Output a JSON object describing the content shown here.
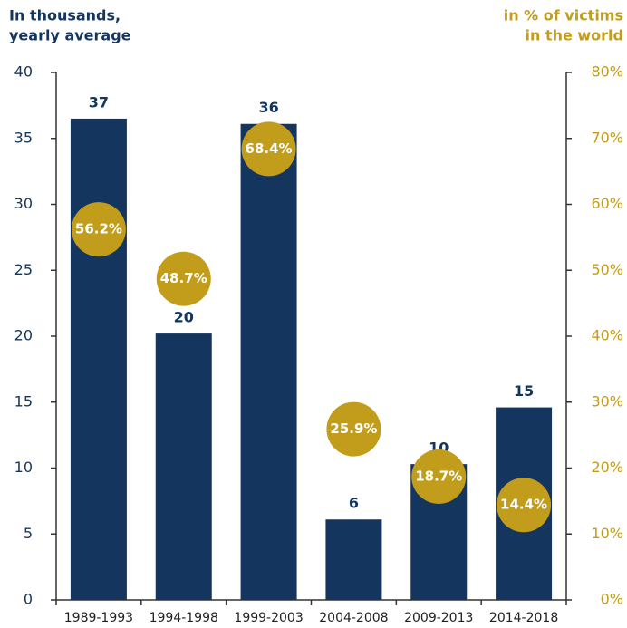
{
  "chart_data": {
    "type": "bar",
    "y_axis_title": [
      "In thousands,",
      "yearly average"
    ],
    "y2_axis_title": [
      "in % of victims",
      "in the world"
    ],
    "categories": [
      "1989-1993",
      "1994-1998",
      "1999-2003",
      "2004-2008",
      "2009-2013",
      "2014-2018"
    ],
    "series": [
      {
        "color": "#14365e",
        "values": [
          36.5,
          20.2,
          36.1,
          6.1,
          10.3,
          14.6
        ],
        "value_labels": [
          "37",
          "20",
          "36",
          "6",
          "10",
          "15"
        ]
      },
      {
        "color": "#c29d1b",
        "axis": "y2",
        "values": [
          56.2,
          48.7,
          68.4,
          25.9,
          18.7,
          14.4
        ],
        "value_labels": [
          "56.2%",
          "48.7%",
          "68.4%",
          "25.9%",
          "18.7%",
          "14.4%"
        ]
      }
    ],
    "ylim": [
      0,
      40
    ],
    "yticks": [
      0,
      5,
      10,
      15,
      20,
      25,
      30,
      35,
      40
    ],
    "y2lim": [
      0,
      80
    ],
    "y2ticks": [
      {
        "value": 0,
        "label": "0%"
      },
      {
        "value": 10,
        "label": "10%"
      },
      {
        "value": 20,
        "label": "20%"
      },
      {
        "value": 30,
        "label": "30%"
      },
      {
        "value": 40,
        "label": "40%"
      },
      {
        "value": 50,
        "label": "50%"
      },
      {
        "value": 60,
        "label": "60%"
      },
      {
        "value": 70,
        "label": "70%"
      },
      {
        "value": 80,
        "label": "80%"
      }
    ]
  }
}
